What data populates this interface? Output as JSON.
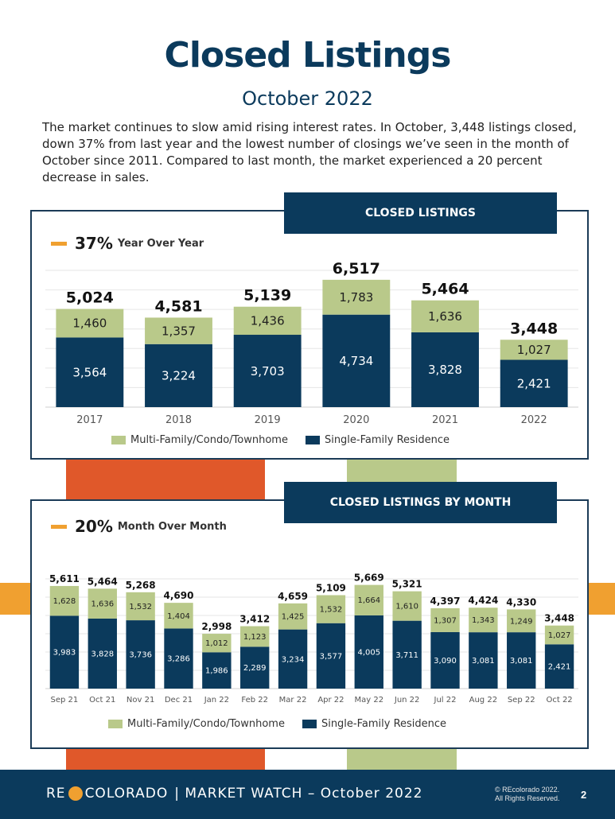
{
  "page": {
    "title": "Closed Listings",
    "subtitle": "October 2022",
    "intro": "The market continues to slow amid rising interest rates. In October, 3,448 listings closed, down 37% from last year and the lowest number of closings we’ve seen in the month of October since 2011. Compared to last month, the market experienced a 20 percent decrease in sales."
  },
  "colors": {
    "navy": "#0b3a5c",
    "green": "#b9c98a",
    "orange": "#f0a030",
    "red_orange": "#e0582a"
  },
  "panel1": {
    "header": "CLOSED LISTINGS",
    "kpi_pct": "37%",
    "kpi_label": "Year Over Year"
  },
  "panel2": {
    "header": "CLOSED LISTINGS BY MONTH",
    "kpi_pct": "20%",
    "kpi_label": "Month Over Month"
  },
  "legend": {
    "multi": "Multi-Family/Condo/Townhome",
    "single": "Single-Family Residence"
  },
  "footer": {
    "brand_left": "RE",
    "brand_right": "COLORADO",
    "brand_suffix": "| MARKET WATCH – October 2022",
    "copyright_1": "© REcolorado 2022.",
    "copyright_2": "All Rights Reserved.",
    "page_number": "2"
  },
  "chart_data": [
    {
      "type": "bar",
      "stacked": true,
      "categories": [
        "2017",
        "2018",
        "2019",
        "2020",
        "2021",
        "2022"
      ],
      "series": [
        {
          "name": "Single-Family Residence",
          "values": [
            3564,
            3224,
            3703,
            4734,
            3828,
            2421
          ],
          "labels": [
            "3,564",
            "3,224",
            "3,703",
            "4,734",
            "3,828",
            "2,421"
          ]
        },
        {
          "name": "Multi-Family/Condo/Townhome",
          "values": [
            1460,
            1357,
            1436,
            1783,
            1636,
            1027
          ],
          "labels": [
            "1,460",
            "1,357",
            "1,436",
            "1,783",
            "1,636",
            "1,027"
          ]
        }
      ],
      "totals": [
        5024,
        4581,
        5139,
        6517,
        5464,
        3448
      ],
      "total_labels": [
        "5,024",
        "4,581",
        "5,139",
        "6,517",
        "5,464",
        "3,448"
      ],
      "ylim": [
        0,
        7000
      ],
      "grid": true,
      "legend_position": "bottom"
    },
    {
      "type": "bar",
      "stacked": true,
      "categories": [
        "Sep 21",
        "Oct 21",
        "Nov 21",
        "Dec 21",
        "Jan 22",
        "Feb 22",
        "Mar 22",
        "Apr 22",
        "May 22",
        "Jun 22",
        "Jul 22",
        "Aug 22",
        "Sep 22",
        "Oct 22"
      ],
      "series": [
        {
          "name": "Single-Family Residence",
          "values": [
            3983,
            3828,
            3736,
            3286,
            1986,
            2289,
            3234,
            3577,
            4005,
            3711,
            3090,
            3081,
            3081,
            2421
          ],
          "labels": [
            "3,983",
            "3,828",
            "3,736",
            "3,286",
            "1,986",
            "2,289",
            "3,234",
            "3,577",
            "4,005",
            "3,711",
            "3,090",
            "3,081",
            "3,081",
            "2,421"
          ]
        },
        {
          "name": "Multi-Family/Condo/Townhome",
          "values": [
            1628,
            1636,
            1532,
            1404,
            1012,
            1123,
            1425,
            1532,
            1664,
            1610,
            1307,
            1343,
            1249,
            1027
          ],
          "labels": [
            "1,628",
            "1,636",
            "1,532",
            "1,404",
            "1,012",
            "1,123",
            "1,425",
            "1,532",
            "1,664",
            "1,610",
            "1,307",
            "1,343",
            "1,249",
            "1,027"
          ]
        }
      ],
      "totals": [
        5611,
        5464,
        5268,
        4690,
        2998,
        3412,
        4659,
        5109,
        5669,
        5321,
        4397,
        4424,
        4330,
        3448
      ],
      "total_labels": [
        "5,611",
        "5,464",
        "5,268",
        "4,690",
        "2,998",
        "3,412",
        "4,659",
        "5,109",
        "5,669",
        "5,321",
        "4,397",
        "4,424",
        "4,330",
        "3,448"
      ],
      "ylim": [
        0,
        6000
      ],
      "grid": true,
      "legend_position": "bottom"
    }
  ]
}
